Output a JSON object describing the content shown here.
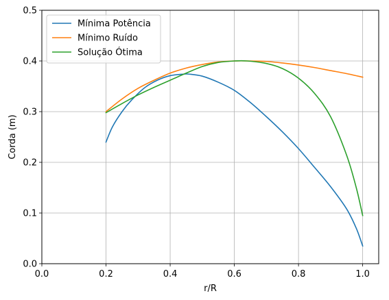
{
  "chart_data": {
    "type": "line",
    "xlabel": "r/R",
    "ylabel": "Corda (m)",
    "xlim": [
      0.0,
      1.05
    ],
    "ylim": [
      0.0,
      0.5
    ],
    "xticks": [
      "0.0",
      "0.2",
      "0.4",
      "0.6",
      "0.8",
      "1.0"
    ],
    "yticks": [
      "0.0",
      "0.1",
      "0.2",
      "0.3",
      "0.4",
      "0.5"
    ],
    "grid": true,
    "legend_position": "top-left",
    "series": [
      {
        "name": "Mínima Potência",
        "color": "#1f77b4",
        "x": [
          0.2,
          0.22,
          0.25,
          0.28,
          0.32,
          0.36,
          0.4,
          0.44,
          0.46,
          0.5,
          0.55,
          0.6,
          0.65,
          0.7,
          0.75,
          0.8,
          0.85,
          0.9,
          0.95,
          0.98,
          1.0
        ],
        "y": [
          0.24,
          0.27,
          0.3,
          0.323,
          0.347,
          0.362,
          0.371,
          0.374,
          0.374,
          0.37,
          0.358,
          0.342,
          0.318,
          0.29,
          0.26,
          0.227,
          0.19,
          0.152,
          0.108,
          0.07,
          0.035
        ]
      },
      {
        "name": "Mínimo Ruído",
        "color": "#ff7f0e",
        "x": [
          0.2,
          0.25,
          0.3,
          0.35,
          0.4,
          0.45,
          0.5,
          0.55,
          0.6,
          0.65,
          0.7,
          0.75,
          0.8,
          0.85,
          0.9,
          0.95,
          1.0
        ],
        "y": [
          0.3,
          0.325,
          0.346,
          0.362,
          0.376,
          0.386,
          0.393,
          0.398,
          0.4,
          0.4,
          0.399,
          0.396,
          0.392,
          0.387,
          0.381,
          0.375,
          0.368
        ]
      },
      {
        "name": "Solução Ótima",
        "color": "#2ca02c",
        "x": [
          0.2,
          0.25,
          0.3,
          0.35,
          0.4,
          0.45,
          0.5,
          0.55,
          0.6,
          0.64,
          0.7,
          0.75,
          0.8,
          0.85,
          0.9,
          0.95,
          0.98,
          1.0
        ],
        "y": [
          0.298,
          0.316,
          0.333,
          0.348,
          0.362,
          0.376,
          0.389,
          0.397,
          0.4,
          0.4,
          0.395,
          0.385,
          0.366,
          0.336,
          0.29,
          0.214,
          0.15,
          0.095
        ]
      }
    ]
  }
}
